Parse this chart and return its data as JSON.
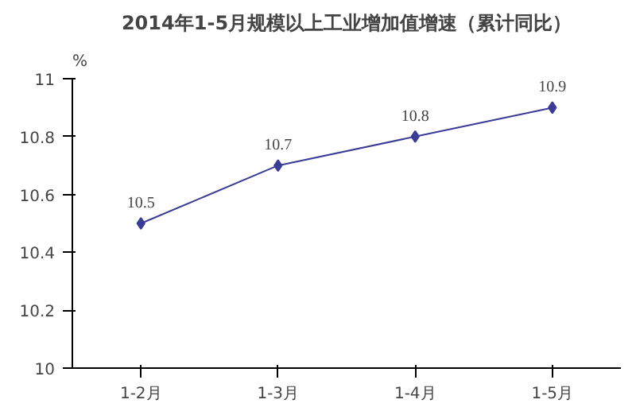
{
  "chart_data": {
    "type": "line",
    "title": "2014年1-5月规模以上工业增加值增速（累计同比）",
    "ylabel": "%",
    "categories": [
      "1-2月",
      "1-3月",
      "1-4月",
      "1-5月"
    ],
    "series": [
      {
        "color": "#3b3b98",
        "values": [
          10.5,
          10.7,
          10.8,
          10.9
        ]
      }
    ],
    "ylim": [
      10,
      11
    ],
    "yticks": [
      10,
      10.2,
      10.4,
      10.6,
      10.8,
      11
    ],
    "data_labels": true,
    "marker": "diamond",
    "line_style": "solid",
    "grid": false,
    "legend": false
  }
}
